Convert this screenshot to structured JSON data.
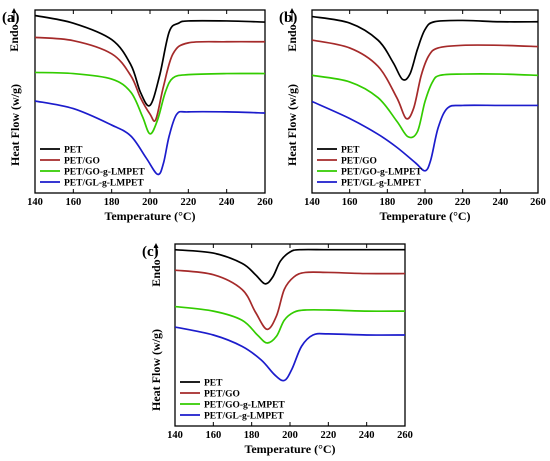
{
  "figure": {
    "colors": {
      "PET": "#000000",
      "PET/GO": "#a52a2a",
      "PET/GO-g-LMPET": "#33cc00",
      "PET/GL-g-LMPET": "#1c1ccc"
    }
  },
  "chart_data": [
    {
      "panel": "(a)",
      "type": "line",
      "xlabel": "Temperature (°C)",
      "ylabel": "Heat Flow (w/g)",
      "endo_label": "Endo",
      "xlim": [
        140,
        260
      ],
      "xticks": [
        "140",
        "160",
        "180",
        "200",
        "220",
        "240",
        "260"
      ],
      "legend_position": "bottom-left",
      "series": [
        {
          "name": "PET",
          "color": "#000000",
          "x": [
            140,
            160,
            180,
            190,
            195,
            200,
            205,
            210,
            215,
            220,
            240,
            260
          ],
          "y": [
            1.0,
            0.93,
            0.78,
            0.55,
            0.3,
            0.18,
            0.45,
            0.85,
            0.93,
            0.95,
            0.95,
            0.94
          ]
        },
        {
          "name": "PET/GO",
          "color": "#a52a2a",
          "x": [
            140,
            160,
            180,
            190,
            195,
            200,
            203,
            207,
            212,
            220,
            240,
            260
          ],
          "y": [
            0.8,
            0.77,
            0.65,
            0.45,
            0.25,
            0.1,
            0.05,
            0.35,
            0.65,
            0.75,
            0.76,
            0.76
          ]
        },
        {
          "name": "PET/GO-g-LMPET",
          "color": "#33cc00",
          "x": [
            140,
            160,
            180,
            190,
            196,
            200,
            204,
            208,
            212,
            220,
            240,
            260
          ],
          "y": [
            0.48,
            0.47,
            0.42,
            0.3,
            0.08,
            -0.08,
            0.05,
            0.3,
            0.43,
            0.46,
            0.47,
            0.47
          ]
        },
        {
          "name": "PET/GL-g-LMPET",
          "color": "#1c1ccc",
          "x": [
            140,
            160,
            180,
            190,
            198,
            204,
            207,
            210,
            214,
            220,
            240,
            260
          ],
          "y": [
            0.22,
            0.15,
            0.0,
            -0.1,
            -0.3,
            -0.45,
            -0.35,
            -0.1,
            0.1,
            0.12,
            0.12,
            0.11
          ]
        }
      ]
    },
    {
      "panel": "(b)",
      "type": "line",
      "xlabel": "Temperature (°C)",
      "ylabel": "Heat Flow (w/g)",
      "endo_label": "Endo",
      "xlim": [
        140,
        260
      ],
      "xticks": [
        "140",
        "160",
        "180",
        "200",
        "220",
        "240",
        "260"
      ],
      "legend_position": "bottom-left",
      "series": [
        {
          "name": "PET",
          "color": "#000000",
          "x": [
            140,
            160,
            175,
            183,
            188,
            192,
            196,
            200,
            205,
            220,
            240,
            260
          ],
          "y": [
            1.0,
            0.95,
            0.82,
            0.65,
            0.52,
            0.56,
            0.75,
            0.9,
            0.96,
            0.97,
            0.96,
            0.96
          ]
        },
        {
          "name": "PET/GO",
          "color": "#a52a2a",
          "x": [
            140,
            160,
            175,
            185,
            190,
            194,
            198,
            202,
            207,
            220,
            240,
            260
          ],
          "y": [
            0.82,
            0.76,
            0.62,
            0.38,
            0.22,
            0.3,
            0.55,
            0.7,
            0.76,
            0.78,
            0.78,
            0.77
          ]
        },
        {
          "name": "PET/GO-g-LMPET",
          "color": "#33cc00",
          "x": [
            140,
            160,
            175,
            185,
            191,
            196,
            200,
            204,
            208,
            220,
            240,
            260
          ],
          "y": [
            0.55,
            0.5,
            0.38,
            0.2,
            0.08,
            0.12,
            0.35,
            0.5,
            0.55,
            0.56,
            0.56,
            0.55
          ]
        },
        {
          "name": "PET/GL-g-LMPET",
          "color": "#1c1ccc",
          "x": [
            140,
            160,
            175,
            185,
            195,
            200,
            203,
            207,
            212,
            220,
            240,
            260
          ],
          "y": [
            0.35,
            0.22,
            0.1,
            0.0,
            -0.12,
            -0.18,
            -0.1,
            0.15,
            0.3,
            0.32,
            0.32,
            0.32
          ]
        }
      ]
    },
    {
      "panel": "(c)",
      "type": "line",
      "xlabel": "Temperature (°C)",
      "ylabel": "Heat Flow (w/g)",
      "endo_label": "Endo",
      "xlim": [
        140,
        260
      ],
      "xticks": [
        "140",
        "160",
        "180",
        "200",
        "220",
        "240",
        "260"
      ],
      "legend_position": "bottom-left",
      "series": [
        {
          "name": "PET",
          "color": "#000000",
          "x": [
            140,
            160,
            175,
            182,
            187,
            191,
            195,
            200,
            205,
            220,
            240,
            260
          ],
          "y": [
            1.0,
            0.97,
            0.88,
            0.78,
            0.7,
            0.76,
            0.9,
            0.98,
            1.0,
            1.0,
            1.0,
            1.0
          ]
        },
        {
          "name": "PET/GO",
          "color": "#a52a2a",
          "x": [
            140,
            160,
            175,
            182,
            188,
            193,
            197,
            202,
            208,
            220,
            240,
            260
          ],
          "y": [
            0.82,
            0.78,
            0.65,
            0.45,
            0.3,
            0.42,
            0.65,
            0.76,
            0.8,
            0.8,
            0.79,
            0.79
          ]
        },
        {
          "name": "PET/GO-g-LMPET",
          "color": "#33cc00",
          "x": [
            140,
            160,
            175,
            183,
            188,
            193,
            197,
            202,
            208,
            220,
            240,
            260
          ],
          "y": [
            0.5,
            0.46,
            0.38,
            0.25,
            0.18,
            0.24,
            0.38,
            0.45,
            0.47,
            0.47,
            0.46,
            0.46
          ]
        },
        {
          "name": "PET/GL-g-LMPET",
          "color": "#1c1ccc",
          "x": [
            140,
            160,
            175,
            185,
            192,
            197,
            201,
            206,
            212,
            220,
            240,
            260
          ],
          "y": [
            0.32,
            0.25,
            0.15,
            0.03,
            -0.1,
            -0.15,
            -0.05,
            0.15,
            0.25,
            0.26,
            0.25,
            0.25
          ]
        }
      ]
    }
  ]
}
